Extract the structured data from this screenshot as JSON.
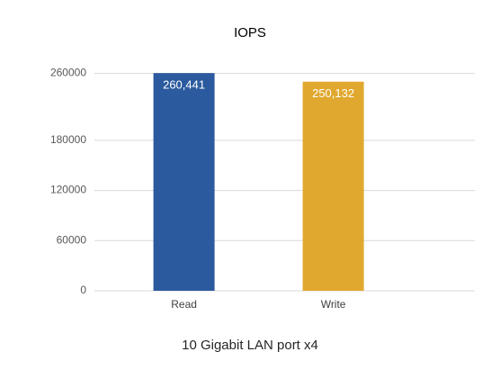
{
  "chart_data": {
    "type": "bar",
    "title": "IOPS",
    "x_label": "10 Gigabit LAN port x4",
    "categories": [
      "Read",
      "Write"
    ],
    "values": [
      260441,
      250132
    ],
    "value_labels": [
      "260,441",
      "250,132"
    ],
    "colors": [
      "#2b5a9e",
      "#e0a82e"
    ],
    "ylim": [
      0,
      280000
    ],
    "yticks": [
      0,
      60000,
      120000,
      180000,
      260000
    ],
    "grid": true
  }
}
